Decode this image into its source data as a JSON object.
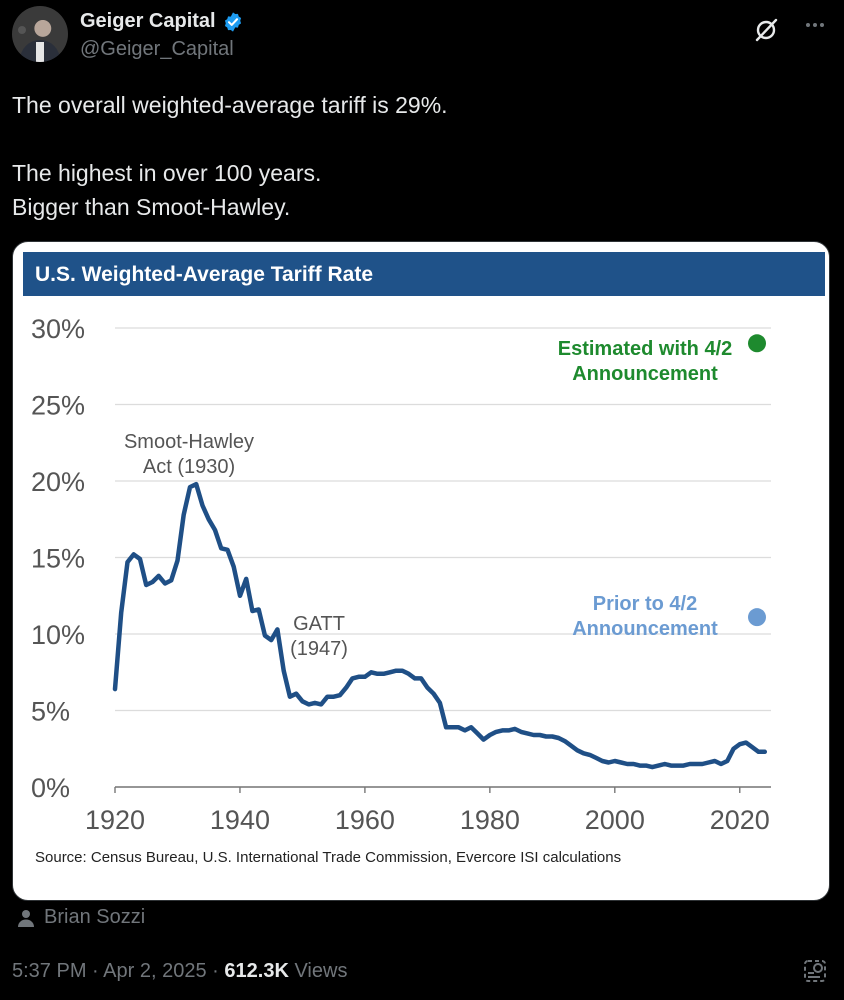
{
  "author": {
    "display_name": "Geiger Capital",
    "handle": "@Geiger_Capital",
    "verified": true
  },
  "tweet": {
    "lines": [
      "The overall weighted-average tariff is 29%.",
      "",
      "The highest in over 100 years.",
      "Bigger than Smoot-Hawley."
    ]
  },
  "tagged_user": "Brian Sozzi",
  "meta": {
    "time": "5:37 PM",
    "date": "Apr 2, 2025",
    "separator": "·",
    "views_count": "612.3K",
    "views_label": "Views"
  },
  "colors": {
    "banner": "#1f5289",
    "line": "#1f4f86",
    "estimated": "#1e8a2e",
    "prior": "#6b9bd2",
    "verified_badge": "#1d9bf0"
  },
  "chart_data": {
    "type": "line",
    "title": "U.S. Weighted-Average Tariff Rate",
    "source": "Source: Census Bureau, U.S. International Trade Commission, Evercore ISI calculations",
    "xlim": [
      1920,
      2025
    ],
    "ylim": [
      0,
      30
    ],
    "x_ticks": [
      1920,
      1940,
      1960,
      1980,
      2000,
      2020
    ],
    "y_ticks": [
      0,
      5,
      10,
      15,
      20,
      25,
      30
    ],
    "y_tick_labels": [
      "0%",
      "5%",
      "10%",
      "15%",
      "20%",
      "25%",
      "30%"
    ],
    "grid": true,
    "series": [
      {
        "x": [
          1920,
          1921,
          1922,
          1923,
          1924,
          1925,
          1926,
          1927,
          1928,
          1929,
          1930,
          1931,
          1932,
          1933,
          1934,
          1935,
          1936,
          1937,
          1938,
          1939,
          1940,
          1941,
          1942,
          1943,
          1944,
          1945,
          1946,
          1947,
          1948,
          1949,
          1950,
          1951,
          1952,
          1953,
          1954,
          1955,
          1956,
          1957,
          1958,
          1959,
          1960,
          1961,
          1962,
          1963,
          1964,
          1965,
          1966,
          1967,
          1968,
          1969,
          1970,
          1971,
          1972,
          1973,
          1974,
          1975,
          1976,
          1977,
          1978,
          1979,
          1980,
          1981,
          1982,
          1983,
          1984,
          1985,
          1986,
          1987,
          1988,
          1989,
          1990,
          1991,
          1992,
          1993,
          1994,
          1995,
          1996,
          1997,
          1998,
          1999,
          2000,
          2001,
          2002,
          2003,
          2004,
          2005,
          2006,
          2007,
          2008,
          2009,
          2010,
          2011,
          2012,
          2013,
          2014,
          2015,
          2016,
          2017,
          2018,
          2019,
          2020,
          2021,
          2022,
          2023,
          2024
        ],
        "y": [
          6.4,
          11.4,
          14.7,
          15.2,
          14.9,
          13.2,
          13.4,
          13.8,
          13.3,
          13.5,
          14.8,
          17.8,
          19.6,
          19.8,
          18.4,
          17.5,
          16.8,
          15.6,
          15.5,
          14.4,
          12.5,
          13.6,
          11.5,
          11.6,
          9.9,
          9.6,
          10.3,
          7.6,
          5.9,
          6.1,
          5.6,
          5.4,
          5.5,
          5.4,
          5.9,
          5.9,
          6.0,
          6.5,
          7.1,
          7.2,
          7.2,
          7.5,
          7.4,
          7.4,
          7.5,
          7.6,
          7.6,
          7.4,
          7.1,
          7.1,
          6.5,
          6.1,
          5.5,
          3.9,
          3.9,
          3.9,
          3.7,
          3.9,
          3.5,
          3.1,
          3.4,
          3.6,
          3.7,
          3.7,
          3.8,
          3.6,
          3.5,
          3.4,
          3.4,
          3.3,
          3.3,
          3.2,
          3.0,
          2.7,
          2.4,
          2.2,
          2.1,
          1.9,
          1.7,
          1.6,
          1.7,
          1.6,
          1.5,
          1.5,
          1.4,
          1.4,
          1.3,
          1.4,
          1.5,
          1.4,
          1.4,
          1.4,
          1.5,
          1.5,
          1.5,
          1.6,
          1.7,
          1.5,
          1.7,
          2.5,
          2.8,
          2.9,
          2.6,
          2.3,
          2.3
        ]
      }
    ],
    "annotations": [
      {
        "text_lines": [
          "Smoot-Hawley",
          "Act (1930)"
        ]
      },
      {
        "text_lines": [
          "GATT",
          "(1947)"
        ]
      },
      {
        "text_lines": [
          "Estimated with 4/2",
          "Announcement"
        ],
        "point": {
          "x": 2025,
          "y": 29
        }
      },
      {
        "text_lines": [
          "Prior to 4/2",
          "Announcement"
        ],
        "point": {
          "x": 2025,
          "y": 11.1
        }
      }
    ]
  }
}
